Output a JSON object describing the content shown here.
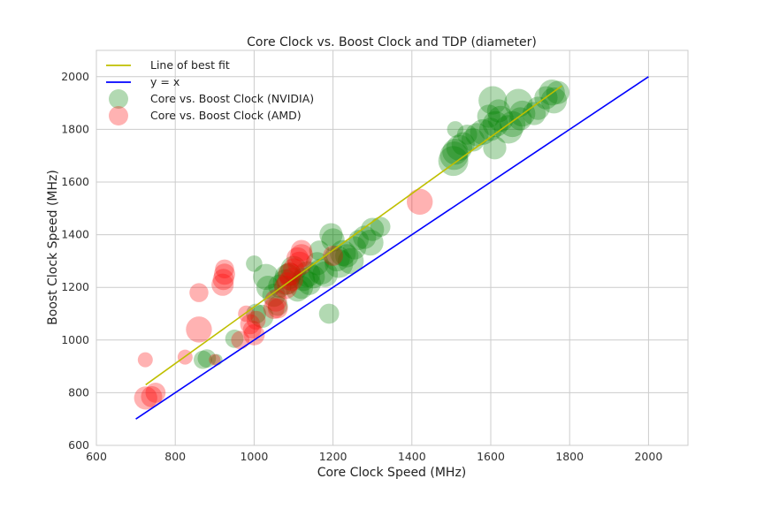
{
  "chart_data": {
    "type": "scatter",
    "title": "Core Clock vs. Boost Clock and TDP (diameter)",
    "xlabel": "Core Clock Speed (MHz)",
    "ylabel": "Boost Clock Speed (MHz)",
    "xlim": [
      600,
      2100
    ],
    "ylim": [
      600,
      2100
    ],
    "xticks": [
      600,
      800,
      1000,
      1200,
      1400,
      1600,
      1800,
      2000
    ],
    "yticks": [
      600,
      800,
      1000,
      1200,
      1400,
      1600,
      1800,
      2000
    ],
    "grid": true,
    "legend_position": "top-left",
    "legend": [
      {
        "label": "Line of best fit",
        "kind": "line",
        "color": "#bfbf00"
      },
      {
        "label": "y = x",
        "kind": "line",
        "color": "#0000ff"
      },
      {
        "label": "Core vs. Boost Clock (NVIDIA)",
        "kind": "marker",
        "color": "#008000"
      },
      {
        "label": "Core vs. Boost Clock (AMD)",
        "kind": "marker",
        "color": "#ff0000"
      }
    ],
    "lines": [
      {
        "name": "Line of best fit",
        "color": "#bfbf00",
        "x": [
          725,
          1780
        ],
        "y": [
          830,
          1965
        ]
      },
      {
        "name": "y = x",
        "color": "#0000ff",
        "x": [
          700,
          2000
        ],
        "y": [
          700,
          2000
        ]
      }
    ],
    "series": [
      {
        "name": "Core vs. Boost Clock (NVIDIA)",
        "color": "#008000",
        "points": [
          {
            "x": 870,
            "y": 925,
            "tdp": 75
          },
          {
            "x": 880,
            "y": 930,
            "tdp": 75
          },
          {
            "x": 905,
            "y": 925,
            "tdp": 30
          },
          {
            "x": 950,
            "y": 1005,
            "tdp": 75
          },
          {
            "x": 1000,
            "y": 1290,
            "tdp": 60
          },
          {
            "x": 1005,
            "y": 1100,
            "tdp": 90
          },
          {
            "x": 1020,
            "y": 1090,
            "tdp": 120
          },
          {
            "x": 1030,
            "y": 1240,
            "tdp": 150
          },
          {
            "x": 1035,
            "y": 1200,
            "tdp": 120
          },
          {
            "x": 1050,
            "y": 1170,
            "tdp": 120
          },
          {
            "x": 1060,
            "y": 1130,
            "tdp": 90
          },
          {
            "x": 1065,
            "y": 1205,
            "tdp": 120
          },
          {
            "x": 1080,
            "y": 1220,
            "tdp": 145
          },
          {
            "x": 1085,
            "y": 1240,
            "tdp": 150
          },
          {
            "x": 1090,
            "y": 1250,
            "tdp": 120
          },
          {
            "x": 1100,
            "y": 1270,
            "tdp": 150
          },
          {
            "x": 1110,
            "y": 1190,
            "tdp": 120
          },
          {
            "x": 1120,
            "y": 1200,
            "tdp": 120
          },
          {
            "x": 1125,
            "y": 1230,
            "tdp": 120
          },
          {
            "x": 1135,
            "y": 1250,
            "tdp": 150
          },
          {
            "x": 1140,
            "y": 1215,
            "tdp": 120
          },
          {
            "x": 1150,
            "y": 1240,
            "tdp": 120
          },
          {
            "x": 1160,
            "y": 1290,
            "tdp": 120
          },
          {
            "x": 1165,
            "y": 1340,
            "tdp": 90
          },
          {
            "x": 1170,
            "y": 1260,
            "tdp": 150
          },
          {
            "x": 1180,
            "y": 1250,
            "tdp": 145
          },
          {
            "x": 1190,
            "y": 1100,
            "tdp": 90
          },
          {
            "x": 1195,
            "y": 1400,
            "tdp": 120
          },
          {
            "x": 1200,
            "y": 1380,
            "tdp": 120
          },
          {
            "x": 1210,
            "y": 1310,
            "tdp": 150
          },
          {
            "x": 1215,
            "y": 1290,
            "tdp": 180
          },
          {
            "x": 1225,
            "y": 1330,
            "tdp": 150
          },
          {
            "x": 1235,
            "y": 1320,
            "tdp": 120
          },
          {
            "x": 1245,
            "y": 1300,
            "tdp": 150
          },
          {
            "x": 1255,
            "y": 1350,
            "tdp": 120
          },
          {
            "x": 1265,
            "y": 1380,
            "tdp": 90
          },
          {
            "x": 1280,
            "y": 1390,
            "tdp": 120
          },
          {
            "x": 1295,
            "y": 1370,
            "tdp": 150
          },
          {
            "x": 1300,
            "y": 1420,
            "tdp": 120
          },
          {
            "x": 1320,
            "y": 1430,
            "tdp": 90
          },
          {
            "x": 1505,
            "y": 1680,
            "tdp": 200
          },
          {
            "x": 1507,
            "y": 1700,
            "tdp": 180
          },
          {
            "x": 1510,
            "y": 1715,
            "tdp": 150
          },
          {
            "x": 1510,
            "y": 1800,
            "tdp": 60
          },
          {
            "x": 1520,
            "y": 1730,
            "tdp": 150
          },
          {
            "x": 1530,
            "y": 1745,
            "tdp": 120
          },
          {
            "x": 1540,
            "y": 1780,
            "tdp": 90
          },
          {
            "x": 1555,
            "y": 1760,
            "tdp": 120
          },
          {
            "x": 1565,
            "y": 1780,
            "tdp": 120
          },
          {
            "x": 1580,
            "y": 1790,
            "tdp": 145
          },
          {
            "x": 1595,
            "y": 1850,
            "tdp": 120
          },
          {
            "x": 1600,
            "y": 1800,
            "tdp": 120
          },
          {
            "x": 1605,
            "y": 1910,
            "tdp": 180
          },
          {
            "x": 1610,
            "y": 1730,
            "tdp": 120
          },
          {
            "x": 1612,
            "y": 1820,
            "tdp": 150
          },
          {
            "x": 1620,
            "y": 1870,
            "tdp": 120
          },
          {
            "x": 1625,
            "y": 1840,
            "tdp": 150
          },
          {
            "x": 1645,
            "y": 1800,
            "tdp": 180
          },
          {
            "x": 1655,
            "y": 1820,
            "tdp": 150
          },
          {
            "x": 1670,
            "y": 1900,
            "tdp": 180
          },
          {
            "x": 1675,
            "y": 1840,
            "tdp": 120
          },
          {
            "x": 1680,
            "y": 1860,
            "tdp": 150
          },
          {
            "x": 1710,
            "y": 1860,
            "tdp": 120
          },
          {
            "x": 1720,
            "y": 1880,
            "tdp": 120
          },
          {
            "x": 1740,
            "y": 1920,
            "tdp": 120
          },
          {
            "x": 1755,
            "y": 1940,
            "tdp": 150
          },
          {
            "x": 1760,
            "y": 1910,
            "tdp": 150
          },
          {
            "x": 1770,
            "y": 1940,
            "tdp": 120
          }
        ]
      },
      {
        "name": "Core vs. Boost Clock (AMD)",
        "color": "#ff0000",
        "points": [
          {
            "x": 724,
            "y": 925,
            "tdp": 50
          },
          {
            "x": 725,
            "y": 780,
            "tdp": 120
          },
          {
            "x": 740,
            "y": 785,
            "tdp": 100
          },
          {
            "x": 750,
            "y": 800,
            "tdp": 90
          },
          {
            "x": 825,
            "y": 935,
            "tdp": 50
          },
          {
            "x": 860,
            "y": 1180,
            "tdp": 80
          },
          {
            "x": 860,
            "y": 1040,
            "tdp": 150
          },
          {
            "x": 900,
            "y": 925,
            "tdp": 30
          },
          {
            "x": 920,
            "y": 1210,
            "tdp": 110
          },
          {
            "x": 922,
            "y": 1230,
            "tdp": 100
          },
          {
            "x": 925,
            "y": 1250,
            "tdp": 100
          },
          {
            "x": 925,
            "y": 1270,
            "tdp": 80
          },
          {
            "x": 965,
            "y": 1000,
            "tdp": 75
          },
          {
            "x": 980,
            "y": 1100,
            "tdp": 60
          },
          {
            "x": 990,
            "y": 1060,
            "tdp": 90
          },
          {
            "x": 995,
            "y": 1040,
            "tdp": 75
          },
          {
            "x": 1000,
            "y": 1020,
            "tdp": 100
          },
          {
            "x": 1005,
            "y": 1075,
            "tdp": 80
          },
          {
            "x": 1050,
            "y": 1120,
            "tdp": 100
          },
          {
            "x": 1055,
            "y": 1150,
            "tdp": 110
          },
          {
            "x": 1060,
            "y": 1120,
            "tdp": 90
          },
          {
            "x": 1080,
            "y": 1200,
            "tdp": 120
          },
          {
            "x": 1085,
            "y": 1215,
            "tdp": 110
          },
          {
            "x": 1090,
            "y": 1250,
            "tdp": 120
          },
          {
            "x": 1095,
            "y": 1230,
            "tdp": 120
          },
          {
            "x": 1100,
            "y": 1270,
            "tdp": 100
          },
          {
            "x": 1110,
            "y": 1310,
            "tdp": 110
          },
          {
            "x": 1115,
            "y": 1290,
            "tdp": 130
          },
          {
            "x": 1120,
            "y": 1320,
            "tdp": 120
          },
          {
            "x": 1120,
            "y": 1340,
            "tdp": 100
          },
          {
            "x": 1200,
            "y": 1320,
            "tdp": 90
          },
          {
            "x": 1420,
            "y": 1525,
            "tdp": 150
          }
        ]
      }
    ]
  }
}
